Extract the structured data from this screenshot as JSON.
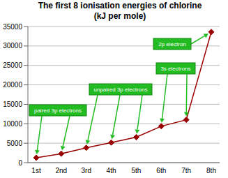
{
  "chart_data": {
    "type": "line",
    "title": "The first 8 ionisation energies of chlorine\n(kJ per mole)",
    "categories": [
      "1st",
      "2nd",
      "3rd",
      "4th",
      "5th",
      "6th",
      "7th",
      "8th"
    ],
    "values": [
      1251,
      2298,
      3822,
      5159,
      6542,
      9362,
      11018,
      33604
    ],
    "color": "#990000",
    "marker": "diamond",
    "ylim": [
      0,
      35000
    ],
    "yticks": [
      0,
      5000,
      10000,
      15000,
      20000,
      25000,
      30000,
      35000
    ],
    "grid": true,
    "annotations": [
      {
        "text": "paired 3p electrons",
        "targets": [
          "1st",
          "2nd"
        ]
      },
      {
        "text": "unpaired 3p electrons",
        "targets": [
          "3rd",
          "4th",
          "5th"
        ]
      },
      {
        "text": "3s electrons",
        "targets": [
          "6th",
          "7th"
        ]
      },
      {
        "text": "2p electron",
        "targets": [
          "8th"
        ]
      }
    ]
  }
}
